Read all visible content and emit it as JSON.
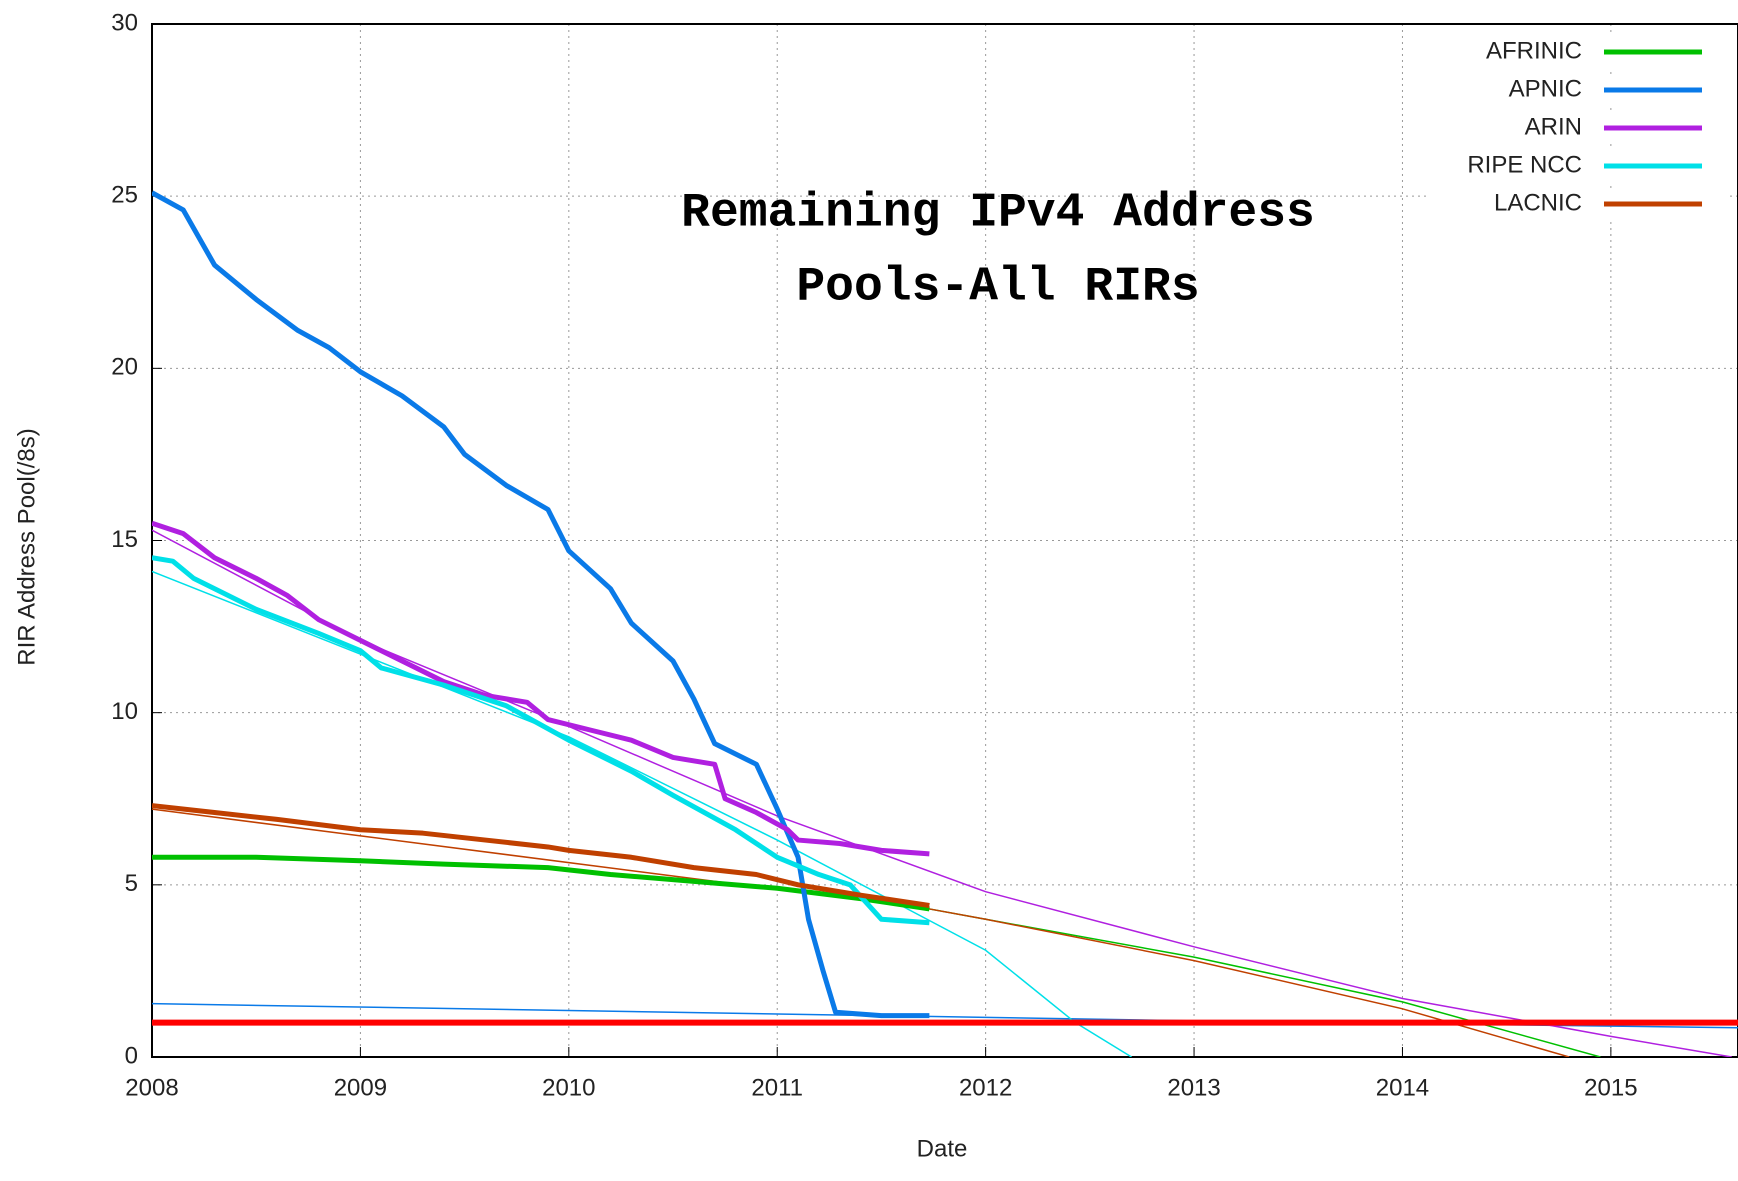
{
  "chart_data": {
    "type": "line",
    "title_lines": [
      "Remaining IPv4 Address",
      "Pools-All RIRs"
    ],
    "x_label": "Date",
    "y_label": "RIR Address Pool(/8s)",
    "xlim": [
      2008,
      2015.61
    ],
    "xticks": [
      2008,
      2009,
      2010,
      2011,
      2012,
      2013,
      2014,
      2015
    ],
    "ylim": [
      0,
      30
    ],
    "yticks": [
      0,
      5,
      10,
      15,
      20,
      25,
      30
    ],
    "grid": true,
    "legend": "top-right",
    "reference_line": {
      "value": 1,
      "color": "#ff0000"
    },
    "series": [
      {
        "name": "AFRINIC",
        "color": "#00c000",
        "x": [
          2008,
          2008.5,
          2009,
          2009.4,
          2009.9,
          2010.2,
          2010.6,
          2011,
          2011.4,
          2011.73
        ],
        "values": [
          5.8,
          5.8,
          5.7,
          5.6,
          5.5,
          5.3,
          5.1,
          4.9,
          4.6,
          4.3
        ],
        "fit_x": [
          2011.73,
          2012,
          2013,
          2014,
          2014.95
        ],
        "fit_values": [
          4.3,
          4.0,
          2.9,
          1.6,
          0
        ]
      },
      {
        "name": "APNIC",
        "color": "#0a7ae8",
        "x": [
          2008,
          2008.15,
          2008.3,
          2008.5,
          2008.7,
          2008.85,
          2009,
          2009.2,
          2009.4,
          2009.5,
          2009.7,
          2009.9,
          2010,
          2010.2,
          2010.3,
          2010.5,
          2010.6,
          2010.7,
          2010.9,
          2011,
          2011.1,
          2011.15,
          2011.22,
          2011.28,
          2011.5,
          2011.73
        ],
        "values": [
          25.1,
          24.6,
          23.0,
          22.0,
          21.1,
          20.6,
          19.9,
          19.2,
          18.3,
          17.5,
          16.6,
          15.9,
          14.7,
          13.6,
          12.6,
          11.5,
          10.4,
          9.1,
          8.5,
          7.2,
          5.8,
          4.0,
          2.5,
          1.3,
          1.2,
          1.2
        ],
        "fit_x": [
          2008,
          2012,
          2013,
          2015.61
        ],
        "fit_values": [
          1.55,
          1.15,
          1.05,
          0.85
        ]
      },
      {
        "name": "ARIN",
        "color": "#b020e0",
        "x": [
          2008,
          2008.15,
          2008.3,
          2008.5,
          2008.65,
          2008.8,
          2009,
          2009.2,
          2009.4,
          2009.6,
          2009.8,
          2009.9,
          2010.1,
          2010.3,
          2010.5,
          2010.7,
          2010.75,
          2010.9,
          2011.05,
          2011.1,
          2011.3,
          2011.5,
          2011.73
        ],
        "values": [
          15.5,
          15.2,
          14.5,
          13.9,
          13.4,
          12.7,
          12.1,
          11.5,
          10.9,
          10.5,
          10.3,
          9.8,
          9.5,
          9.2,
          8.7,
          8.5,
          7.5,
          7.1,
          6.6,
          6.3,
          6.2,
          6.0,
          5.9
        ],
        "fit_x": [
          2008,
          2009,
          2010,
          2011,
          2012,
          2013,
          2014,
          2015,
          2015.58
        ],
        "fit_values": [
          15.3,
          12.1,
          9.6,
          7.0,
          4.8,
          3.2,
          1.7,
          0.6,
          0
        ]
      },
      {
        "name": "RIPE NCC",
        "color": "#00e0e8",
        "x": [
          2008,
          2008.1,
          2008.2,
          2008.5,
          2008.8,
          2009,
          2009.1,
          2009.4,
          2009.7,
          2010,
          2010.3,
          2010.5,
          2010.8,
          2011,
          2011.2,
          2011.35,
          2011.5,
          2011.73
        ],
        "values": [
          14.5,
          14.4,
          13.9,
          13.0,
          12.3,
          11.8,
          11.3,
          10.8,
          10.2,
          9.2,
          8.3,
          7.6,
          6.6,
          5.8,
          5.3,
          5.0,
          4.0,
          3.9
        ],
        "fit_x": [
          2008,
          2010,
          2011,
          2012,
          2012.43,
          2012.7
        ],
        "fit_values": [
          14.1,
          9.3,
          6.3,
          3.1,
          1.0,
          0
        ]
      },
      {
        "name": "LACNIC",
        "color": "#c04000",
        "x": [
          2008,
          2008.3,
          2008.6,
          2009,
          2009.3,
          2009.6,
          2009.9,
          2010,
          2010.3,
          2010.6,
          2010.9,
          2011.1,
          2011.4,
          2011.73
        ],
        "values": [
          7.3,
          7.1,
          6.9,
          6.6,
          6.5,
          6.3,
          6.1,
          6.0,
          5.8,
          5.5,
          5.3,
          5.0,
          4.7,
          4.4
        ],
        "fit_x": [
          2008,
          2011.73,
          2012,
          2013,
          2014,
          2014.8
        ],
        "fit_values": [
          7.2,
          4.3,
          4.0,
          2.8,
          1.4,
          0
        ]
      }
    ]
  }
}
